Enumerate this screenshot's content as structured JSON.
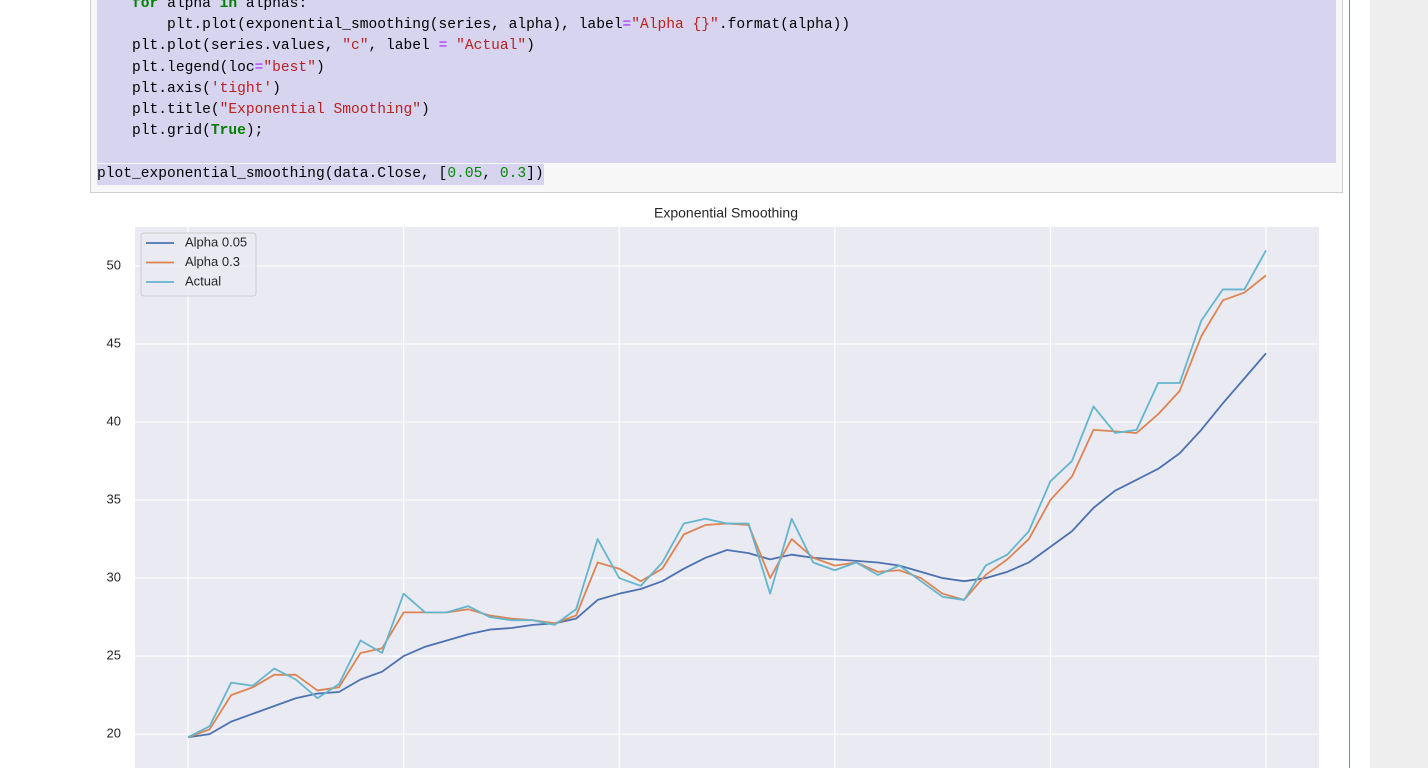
{
  "code": {
    "lines": [
      [
        "    ",
        {
          "text": "for",
          "style": "kw"
        },
        " alpha ",
        {
          "text": "in",
          "style": "kw"
        },
        " alphas:"
      ],
      [
        "        plt.plot(exponential_smoothing(series, alpha), label",
        {
          "text": "=",
          "style": "op"
        },
        {
          "text": "\"Alpha {}\"",
          "style": "str"
        },
        ".format(alpha))"
      ],
      [
        "    plt.plot(series.values, ",
        {
          "text": "\"c\"",
          "style": "str"
        },
        ", label ",
        {
          "text": "=",
          "style": "op"
        },
        " ",
        {
          "text": "\"Actual\"",
          "style": "str"
        },
        ")"
      ],
      [
        "    plt.legend(loc",
        {
          "text": "=",
          "style": "op"
        },
        {
          "text": "\"best\"",
          "style": "str"
        },
        ")"
      ],
      [
        "    plt.axis(",
        {
          "text": "'tight'",
          "style": "str"
        },
        ")"
      ],
      [
        "    plt.title(",
        {
          "text": "\"Exponential Smoothing\"",
          "style": "str"
        },
        ")"
      ],
      [
        "    plt.grid(",
        {
          "text": "True",
          "style": "kw"
        },
        ");"
      ],
      [],
      [
        "plot_exponential_smoothing(data.Close, [",
        {
          "text": "0.05",
          "style": "num"
        },
        ", ",
        {
          "text": "0.3",
          "style": "num"
        },
        "])"
      ]
    ]
  },
  "chart_data": {
    "type": "line",
    "title": "Exponential Smoothing",
    "x": [
      0,
      5,
      10,
      15,
      20,
      25,
      30,
      35,
      40,
      45,
      50,
      55,
      60,
      65,
      70,
      75,
      80,
      85,
      90,
      95,
      100,
      105,
      110,
      115,
      120,
      125,
      130,
      135,
      140,
      145,
      150,
      155,
      160,
      165,
      170,
      175,
      180,
      185,
      190,
      195,
      200,
      205,
      210,
      215,
      220,
      225,
      230,
      235,
      240,
      245,
      250
    ],
    "series": [
      {
        "name": "Alpha 0.05",
        "color": "#4c72b0",
        "values": [
          19.8,
          20.0,
          20.8,
          21.3,
          21.8,
          22.3,
          22.6,
          22.7,
          23.5,
          24.0,
          25.0,
          25.6,
          26.0,
          26.4,
          26.7,
          26.8,
          27.0,
          27.1,
          27.4,
          28.6,
          29.0,
          29.3,
          29.8,
          30.6,
          31.3,
          31.8,
          31.6,
          31.2,
          31.5,
          31.3,
          31.2,
          31.1,
          31.0,
          30.8,
          30.4,
          30.0,
          29.8,
          30.0,
          30.4,
          31.0,
          32.0,
          33.0,
          34.5,
          35.6,
          36.3,
          37.0,
          38.0,
          39.5,
          41.2,
          42.8,
          44.4
        ]
      },
      {
        "name": "Alpha 0.3",
        "color": "#dd8452",
        "values": [
          19.8,
          20.3,
          22.5,
          23.0,
          23.8,
          23.8,
          22.8,
          23.0,
          25.2,
          25.5,
          27.8,
          27.8,
          27.8,
          28.0,
          27.6,
          27.4,
          27.3,
          27.1,
          27.6,
          31.0,
          30.6,
          29.8,
          30.6,
          32.8,
          33.4,
          33.5,
          33.4,
          30.0,
          32.5,
          31.3,
          30.8,
          31.0,
          30.4,
          30.5,
          30.0,
          29.0,
          28.6,
          30.2,
          31.2,
          32.5,
          35.0,
          36.5,
          39.5,
          39.4,
          39.3,
          40.5,
          42.0,
          45.5,
          47.8,
          48.3,
          49.4
        ]
      },
      {
        "name": "Actual",
        "color": "#64b5cd",
        "values": [
          19.8,
          20.5,
          23.3,
          23.1,
          24.2,
          23.5,
          22.3,
          23.2,
          26.0,
          25.2,
          29.0,
          27.8,
          27.8,
          28.2,
          27.5,
          27.3,
          27.3,
          27.0,
          28.0,
          32.5,
          30.0,
          29.5,
          31.0,
          33.5,
          33.8,
          33.5,
          33.5,
          29.0,
          33.8,
          31.0,
          30.5,
          31.0,
          30.2,
          30.8,
          29.8,
          28.8,
          28.6,
          30.8,
          31.5,
          33.0,
          36.2,
          37.5,
          41.0,
          39.3,
          39.5,
          42.5,
          42.5,
          46.5,
          48.5,
          48.5,
          51.0
        ]
      }
    ],
    "xlim": [
      -12.3,
      262.3
    ],
    "xticks": [
      0,
      50,
      100,
      150,
      200,
      250
    ],
    "ylim": [
      17.7,
      52.5
    ],
    "yticks": [
      20,
      25,
      30,
      35,
      40,
      45,
      50
    ],
    "grid": true,
    "legend": "upper left"
  }
}
